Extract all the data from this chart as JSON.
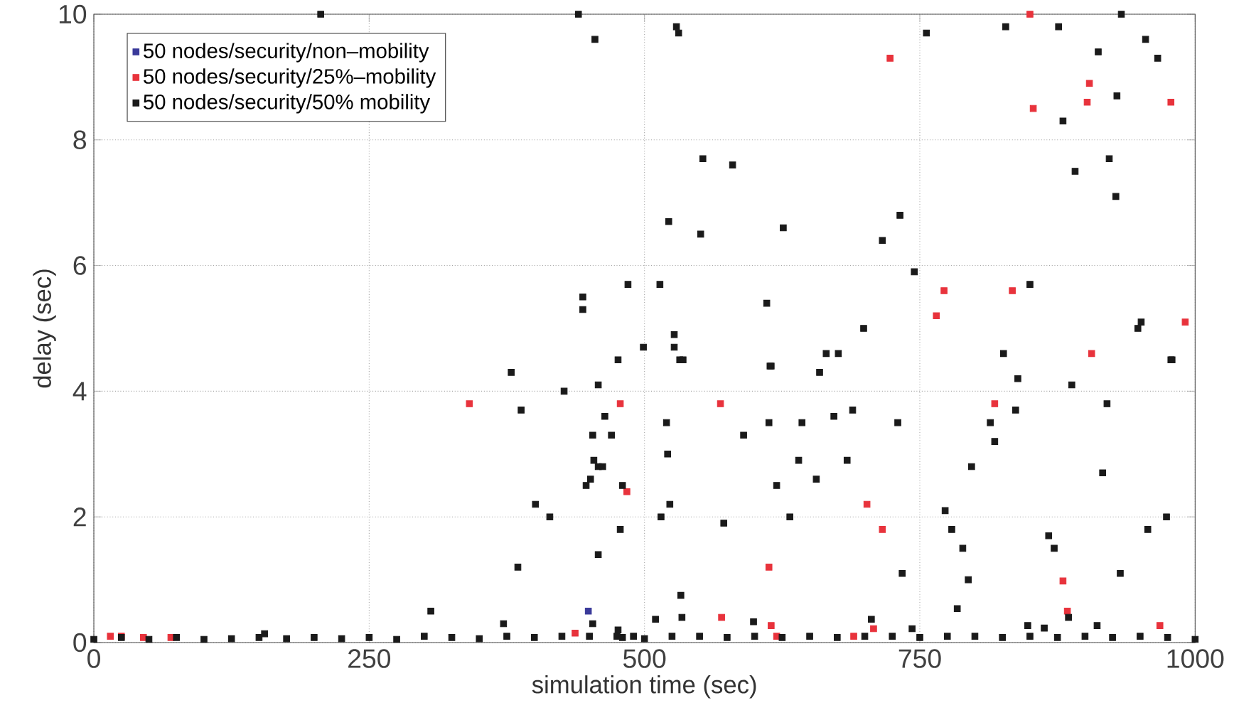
{
  "chart_data": {
    "type": "scatter",
    "xlabel": "simulation time (sec)",
    "ylabel": "delay (sec)",
    "xlim": [
      0,
      1000
    ],
    "ylim": [
      0,
      10
    ],
    "xticks": [
      0,
      250,
      500,
      750,
      1000
    ],
    "yticks": [
      0,
      2,
      4,
      6,
      8,
      10
    ],
    "grid": true,
    "legend": "top left",
    "marker": "square",
    "series": [
      {
        "name": "50 nodes/security/non–mobility",
        "color": "#3a3a9a",
        "x": [
          449
        ],
        "values": [
          0.5
        ]
      },
      {
        "name": "50 nodes/security/25%–mobility",
        "color": "#e8333c",
        "x": [
          15,
          25,
          45,
          70,
          341,
          437,
          478,
          484,
          569,
          570,
          613,
          615,
          620,
          690,
          702,
          708,
          716,
          723,
          765,
          772,
          818,
          834,
          850,
          853,
          880,
          884,
          902,
          904,
          906,
          968,
          978,
          991
        ],
        "values": [
          0.1,
          0.1,
          0.08,
          0.08,
          3.8,
          0.15,
          3.8,
          2.4,
          3.8,
          0.4,
          1.2,
          0.27,
          0.1,
          0.1,
          2.2,
          0.22,
          1.8,
          9.3,
          5.2,
          5.6,
          3.8,
          5.6,
          10.0,
          8.5,
          0.98,
          0.5,
          8.6,
          8.9,
          4.6,
          0.27,
          8.6,
          5.1
        ]
      },
      {
        "name": "50 nodes/security/50% mobility",
        "color": "#1a1a1a",
        "x": [
          0,
          25,
          50,
          75,
          100,
          125,
          150,
          155,
          175,
          200,
          206,
          225,
          250,
          275,
          300,
          306,
          325,
          350,
          372,
          375,
          379,
          385,
          388,
          400,
          401,
          414,
          425,
          427,
          440,
          444,
          444,
          447,
          450,
          451,
          453,
          453,
          454,
          455,
          458,
          458,
          458,
          462,
          464,
          470,
          475,
          476,
          476,
          478,
          480,
          480,
          485,
          490,
          499,
          500,
          510,
          514,
          515,
          520,
          521,
          522,
          523,
          525,
          527,
          527,
          529,
          531,
          532,
          533,
          534,
          535,
          550,
          551,
          553,
          572,
          575,
          580,
          590,
          599,
          600,
          611,
          613,
          614,
          615,
          620,
          625,
          626,
          632,
          640,
          643,
          650,
          656,
          659,
          665,
          672,
          675,
          676,
          684,
          689,
          699,
          700,
          706,
          716,
          725,
          730,
          732,
          734,
          743,
          745,
          750,
          756,
          773,
          775,
          779,
          784,
          789,
          794,
          797,
          800,
          814,
          818,
          825,
          826,
          828,
          837,
          839,
          848,
          850,
          850,
          863,
          867,
          872,
          875,
          876,
          880,
          885,
          888,
          891,
          900,
          911,
          912,
          916,
          920,
          922,
          925,
          928,
          929,
          932,
          933,
          948,
          950,
          951,
          955,
          957,
          966,
          974,
          975,
          978,
          979,
          1000
        ],
        "values": [
          0.05,
          0.08,
          0.05,
          0.08,
          0.05,
          0.06,
          0.08,
          0.14,
          0.06,
          0.08,
          10.0,
          0.06,
          0.08,
          0.05,
          0.1,
          0.5,
          0.08,
          0.06,
          0.3,
          0.1,
          4.3,
          1.2,
          3.7,
          0.08,
          2.2,
          2.0,
          0.1,
          4.0,
          10.0,
          5.5,
          5.3,
          2.5,
          0.1,
          2.6,
          3.3,
          0.3,
          2.9,
          9.6,
          4.1,
          2.8,
          1.4,
          2.8,
          3.6,
          3.3,
          0.1,
          4.5,
          0.2,
          1.8,
          2.5,
          0.08,
          5.7,
          0.1,
          4.7,
          0.06,
          0.37,
          5.7,
          2.0,
          3.5,
          3.0,
          6.7,
          2.2,
          0.1,
          4.9,
          4.7,
          9.8,
          9.7,
          4.5,
          0.75,
          0.4,
          4.5,
          0.1,
          6.5,
          7.7,
          1.9,
          0.08,
          7.6,
          3.3,
          0.33,
          0.1,
          5.4,
          3.5,
          4.4,
          4.4,
          2.5,
          0.08,
          6.6,
          2.0,
          2.9,
          3.5,
          0.1,
          2.6,
          4.3,
          4.6,
          3.6,
          0.08,
          4.6,
          2.9,
          3.7,
          5.0,
          0.1,
          0.37,
          6.4,
          0.1,
          3.5,
          6.8,
          1.1,
          0.22,
          5.9,
          0.08,
          9.7,
          2.1,
          0.1,
          1.8,
          0.54,
          1.5,
          1.0,
          2.8,
          0.1,
          3.5,
          3.2,
          0.08,
          4.6,
          9.8,
          3.7,
          4.2,
          0.27,
          5.7,
          0.1,
          0.23,
          1.7,
          1.5,
          0.08,
          9.8,
          8.3,
          0.4,
          4.1,
          7.5,
          0.1,
          0.27,
          9.4,
          2.7,
          3.8,
          7.7,
          0.08,
          7.1,
          8.7,
          1.1,
          10.0,
          5.0,
          0.1,
          5.1,
          9.6,
          1.8,
          9.3,
          2.0,
          0.08,
          4.5,
          4.5,
          0.05
        ]
      }
    ]
  }
}
